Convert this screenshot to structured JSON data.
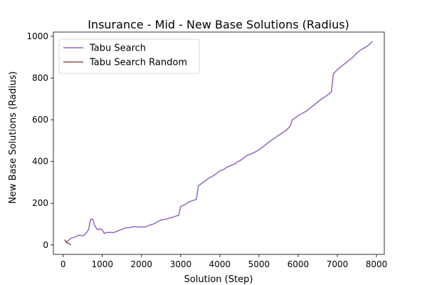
{
  "chart_data": {
    "type": "line",
    "title": "Insurance - Mid - New Base Solutions (Radius)",
    "xlabel": "Solution (Step)",
    "ylabel": "New Base Solutions (Radius)",
    "xlim": [
      -250,
      8200
    ],
    "ylim": [
      -45,
      1020
    ],
    "xticks": [
      0,
      1000,
      2000,
      3000,
      4000,
      5000,
      6000,
      7000,
      8000
    ],
    "yticks": [
      0,
      200,
      400,
      600,
      800,
      1000
    ],
    "legend_position": "upper-left",
    "grid": false,
    "series": [
      {
        "name": "Tabu Search",
        "color": "#9467bd",
        "points": [
          [
            50,
            20
          ],
          [
            100,
            15
          ],
          [
            150,
            25
          ],
          [
            200,
            32
          ],
          [
            300,
            38
          ],
          [
            400,
            47
          ],
          [
            500,
            44
          ],
          [
            550,
            50
          ],
          [
            600,
            60
          ],
          [
            650,
            75
          ],
          [
            700,
            122
          ],
          [
            750,
            125
          ],
          [
            800,
            95
          ],
          [
            850,
            80
          ],
          [
            900,
            72
          ],
          [
            950,
            78
          ],
          [
            1000,
            72
          ],
          [
            1050,
            55
          ],
          [
            1100,
            60
          ],
          [
            1300,
            60
          ],
          [
            1400,
            68
          ],
          [
            1500,
            75
          ],
          [
            1600,
            82
          ],
          [
            1700,
            83
          ],
          [
            1800,
            88
          ],
          [
            1900,
            86
          ],
          [
            2000,
            87
          ],
          [
            2100,
            86
          ],
          [
            2200,
            95
          ],
          [
            2300,
            100
          ],
          [
            2400,
            110
          ],
          [
            2500,
            120
          ],
          [
            2600,
            122
          ],
          [
            2700,
            128
          ],
          [
            2800,
            133
          ],
          [
            2900,
            140
          ],
          [
            2950,
            142
          ],
          [
            3000,
            185
          ],
          [
            3100,
            192
          ],
          [
            3200,
            205
          ],
          [
            3300,
            212
          ],
          [
            3400,
            218
          ],
          [
            3450,
            282
          ],
          [
            3500,
            290
          ],
          [
            3600,
            303
          ],
          [
            3700,
            318
          ],
          [
            3800,
            328
          ],
          [
            3900,
            340
          ],
          [
            4000,
            355
          ],
          [
            4100,
            362
          ],
          [
            4200,
            375
          ],
          [
            4300,
            382
          ],
          [
            4400,
            390
          ],
          [
            4450,
            400
          ],
          [
            4500,
            402
          ],
          [
            4600,
            415
          ],
          [
            4700,
            430
          ],
          [
            4800,
            436
          ],
          [
            4900,
            445
          ],
          [
            5000,
            456
          ],
          [
            5100,
            470
          ],
          [
            5200,
            485
          ],
          [
            5300,
            500
          ],
          [
            5400,
            512
          ],
          [
            5500,
            525
          ],
          [
            5600,
            538
          ],
          [
            5700,
            550
          ],
          [
            5800,
            570
          ],
          [
            5850,
            600
          ],
          [
            5900,
            605
          ],
          [
            6000,
            620
          ],
          [
            6100,
            630
          ],
          [
            6200,
            640
          ],
          [
            6300,
            655
          ],
          [
            6400,
            670
          ],
          [
            6500,
            685
          ],
          [
            6600,
            700
          ],
          [
            6700,
            712
          ],
          [
            6800,
            725
          ],
          [
            6850,
            735
          ],
          [
            6900,
            820
          ],
          [
            7000,
            840
          ],
          [
            7100,
            855
          ],
          [
            7200,
            870
          ],
          [
            7300,
            885
          ],
          [
            7400,
            900
          ],
          [
            7500,
            920
          ],
          [
            7600,
            935
          ],
          [
            7700,
            945
          ],
          [
            7800,
            958
          ],
          [
            7900,
            975
          ]
        ]
      },
      {
        "name": "Tabu Search Random",
        "color": "#8c564b",
        "points": [
          [
            40,
            25
          ],
          [
            80,
            12
          ],
          [
            120,
            8
          ],
          [
            160,
            5
          ],
          [
            200,
            0
          ]
        ]
      }
    ]
  }
}
